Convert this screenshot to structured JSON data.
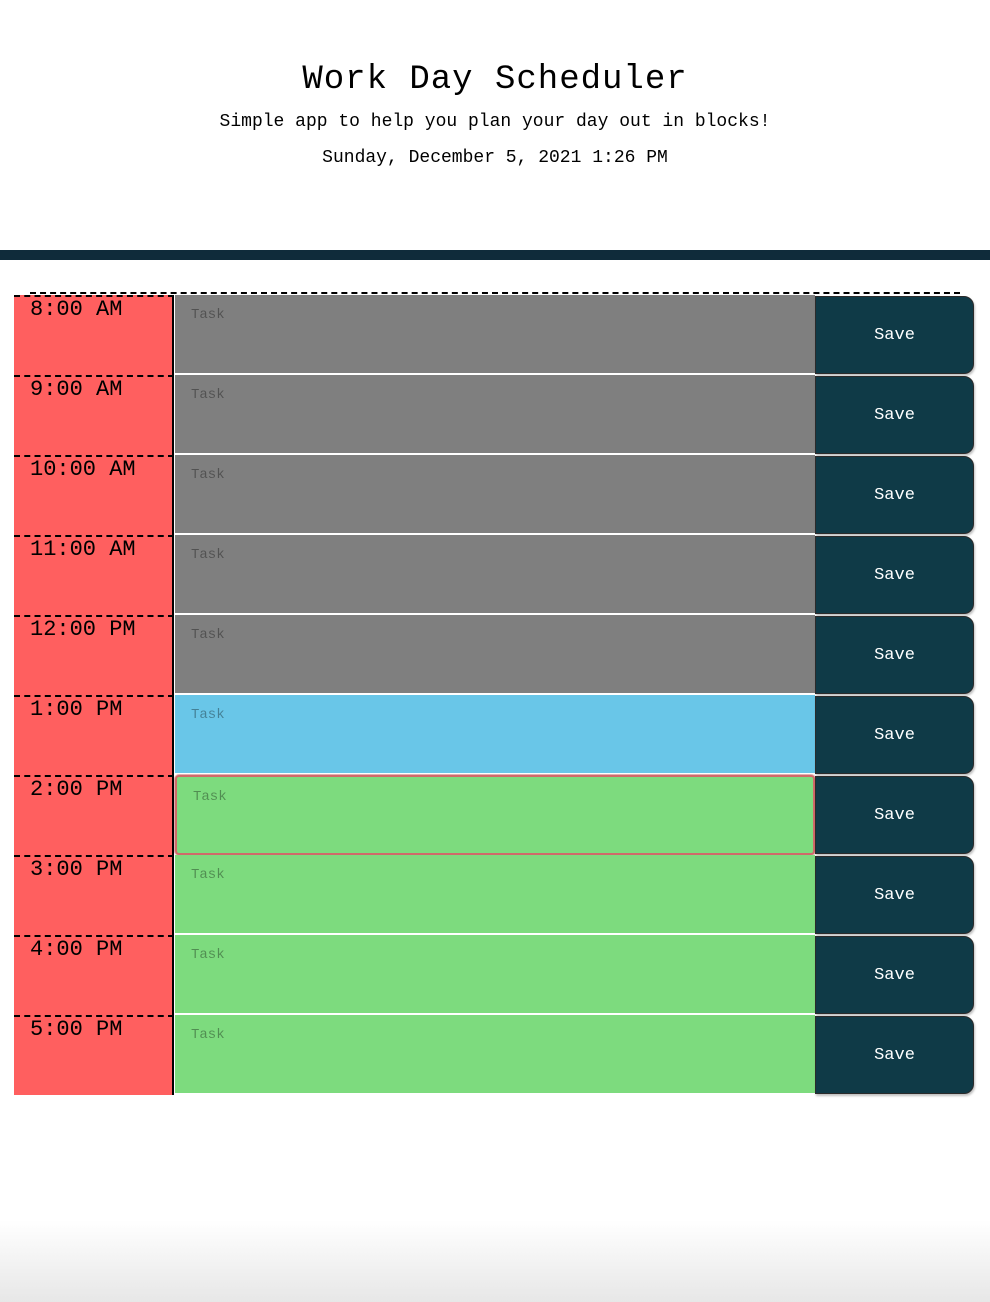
{
  "header": {
    "title": "Work Day Scheduler",
    "subtitle": "Simple app to help you plan your day out in blocks!",
    "current_date": "Sunday, December 5, 2021 1:26 PM"
  },
  "colors": {
    "header_bar": "#0f2b3a",
    "hour_background": "#ff5f5f",
    "past": "#7f7f7f",
    "present": "#69c6e8",
    "future": "#7ddb7e",
    "save_button": "#0f3a47"
  },
  "rows": [
    {
      "hour": "8:00 AM",
      "status": "past",
      "task_value": "",
      "task_placeholder": "Task",
      "save_label": "Save"
    },
    {
      "hour": "9:00 AM",
      "status": "past",
      "task_value": "",
      "task_placeholder": "Task",
      "save_label": "Save"
    },
    {
      "hour": "10:00 AM",
      "status": "past",
      "task_value": "",
      "task_placeholder": "Task",
      "save_label": "Save"
    },
    {
      "hour": "11:00 AM",
      "status": "past",
      "task_value": "",
      "task_placeholder": "Task",
      "save_label": "Save"
    },
    {
      "hour": "12:00 PM",
      "status": "past",
      "task_value": "",
      "task_placeholder": "Task",
      "save_label": "Save"
    },
    {
      "hour": "1:00 PM",
      "status": "present",
      "task_value": "",
      "task_placeholder": "Task",
      "save_label": "Save"
    },
    {
      "hour": "2:00 PM",
      "status": "future",
      "task_value": "",
      "task_placeholder": "Task",
      "save_label": "Save"
    },
    {
      "hour": "3:00 PM",
      "status": "future",
      "task_value": "",
      "task_placeholder": "Task",
      "save_label": "Save"
    },
    {
      "hour": "4:00 PM",
      "status": "future",
      "task_value": "",
      "task_placeholder": "Task",
      "save_label": "Save"
    },
    {
      "hour": "5:00 PM",
      "status": "future",
      "task_value": "",
      "task_placeholder": "Task",
      "save_label": "Save"
    }
  ]
}
